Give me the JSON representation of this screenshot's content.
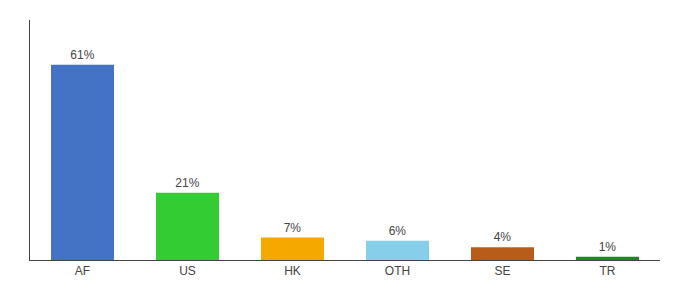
{
  "chart_data": {
    "type": "bar",
    "categories": [
      "AF",
      "US",
      "HK",
      "OTH",
      "SE",
      "TR"
    ],
    "values": [
      61,
      21,
      7,
      6,
      4,
      1
    ],
    "value_labels": [
      "61%",
      "21%",
      "7%",
      "6%",
      "4%",
      "1%"
    ],
    "colors": [
      "#4472c4",
      "#33cc33",
      "#f5a800",
      "#87ceeb",
      "#b85c1a",
      "#1a8c1a"
    ],
    "ylim": [
      0,
      75
    ],
    "grid": false,
    "data_labels": true,
    "tick_labels": "x"
  }
}
